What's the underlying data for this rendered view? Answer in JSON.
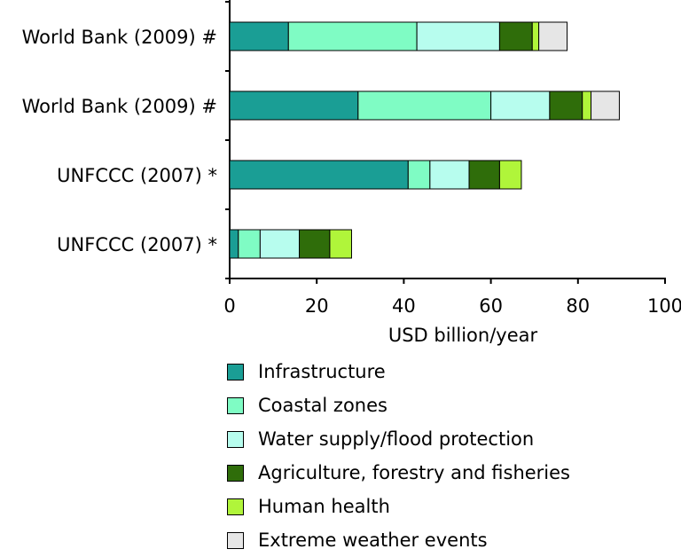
{
  "chart_data": {
    "type": "bar",
    "orientation": "horizontal",
    "stacked": true,
    "categories": [
      "World Bank (2009) #",
      "World Bank (2009) #",
      "UNFCCC (2007) *",
      "UNFCCC (2007) *"
    ],
    "series": [
      {
        "name": "Infrastructure",
        "color": "#1a9e95",
        "values": [
          13.5,
          29.5,
          41,
          2
        ]
      },
      {
        "name": "Coastal zones",
        "color": "#7ffcc4",
        "values": [
          29.5,
          30.5,
          5,
          5
        ]
      },
      {
        "name": "Water supply/flood protection",
        "color": "#b7fdee",
        "values": [
          19,
          13.5,
          9,
          9
        ]
      },
      {
        "name": "Agriculture, forestry and fisheries",
        "color": "#2f6d0a",
        "values": [
          7.5,
          7.5,
          7,
          7
        ]
      },
      {
        "name": "Human health",
        "color": "#b0f53a",
        "values": [
          1.5,
          2,
          5,
          5
        ]
      },
      {
        "name": "Extreme weather events",
        "color": "#e6e6e6",
        "values": [
          6.5,
          6.5,
          0,
          0
        ]
      }
    ],
    "xlabel": "USD billion/year",
    "xlim": [
      0,
      100
    ],
    "xticks": [
      "0",
      "20",
      "40",
      "60",
      "80",
      "100"
    ],
    "legend": "bottom",
    "grid": false
  }
}
